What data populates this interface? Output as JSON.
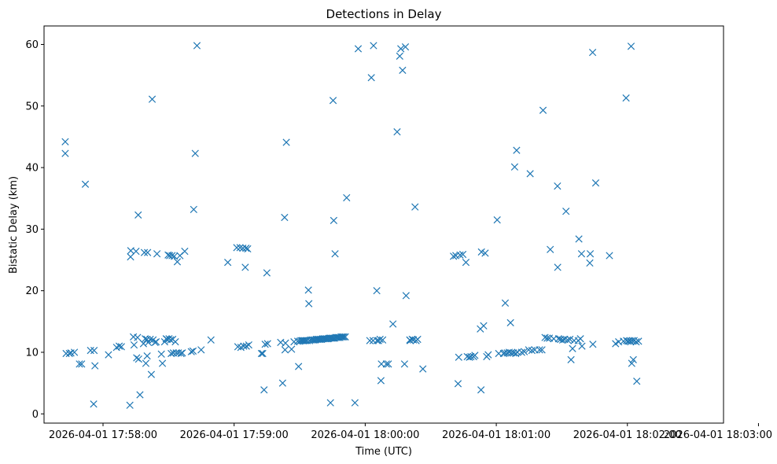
{
  "chart_data": {
    "type": "scatter",
    "title": "Detections in Delay",
    "xlabel": "Time (UTC)",
    "ylabel": "Bistatic Delay (km)",
    "marker": "x",
    "color": "#1f77b4",
    "x_unit": "seconds after 2026-04-01 17:57:00",
    "xlim": [
      33,
      344
    ],
    "ylim": [
      -1.5,
      63
    ],
    "x_ticks": [
      {
        "value": 60,
        "label": "2026-04-01 17:58:00"
      },
      {
        "value": 120,
        "label": "2026-04-01 17:59:00"
      },
      {
        "value": 180,
        "label": "2026-04-01 18:00:00"
      },
      {
        "value": 240,
        "label": "2026-04-01 18:01:00"
      },
      {
        "value": 300,
        "label": "2026-04-01 18:02:00"
      },
      {
        "value": 360,
        "label": "2026-04-01 18:03:00"
      }
    ],
    "y_ticks": [
      {
        "value": 0,
        "label": "0"
      },
      {
        "value": 10,
        "label": "10"
      },
      {
        "value": 20,
        "label": "20"
      },
      {
        "value": 30,
        "label": "30"
      },
      {
        "value": 40,
        "label": "40"
      },
      {
        "value": 50,
        "label": "50"
      },
      {
        "value": 60,
        "label": "60"
      }
    ],
    "points": [
      [
        42.7,
        44.2
      ],
      [
        42.7,
        42.3
      ],
      [
        43.1,
        9.8
      ],
      [
        44.6,
        9.8
      ],
      [
        45.3,
        9.9
      ],
      [
        46.9,
        10.0
      ],
      [
        49.2,
        8.1
      ],
      [
        50.2,
        8.1
      ],
      [
        51.9,
        37.3
      ],
      [
        54.3,
        10.3
      ],
      [
        55.7,
        1.6
      ],
      [
        55.9,
        10.3
      ],
      [
        56.3,
        7.8
      ],
      [
        62.5,
        9.6
      ],
      [
        66.2,
        10.8
      ],
      [
        67.4,
        11.0
      ],
      [
        68.4,
        10.9
      ],
      [
        72.3,
        1.4
      ],
      [
        72.6,
        25.5
      ],
      [
        72.7,
        26.5
      ],
      [
        73.9,
        12.5
      ],
      [
        74.2,
        11.2
      ],
      [
        75.1,
        26.4
      ],
      [
        75.4,
        9.1
      ],
      [
        75.8,
        12.4
      ],
      [
        76.1,
        32.3
      ],
      [
        76.3,
        8.9
      ],
      [
        76.9,
        3.1
      ],
      [
        78.5,
        11.4
      ],
      [
        78.9,
        26.2
      ],
      [
        79.3,
        12.2
      ],
      [
        79.6,
        8.2
      ],
      [
        80.1,
        12.1
      ],
      [
        80.2,
        9.4
      ],
      [
        80.4,
        26.2
      ],
      [
        80.7,
        11.6
      ],
      [
        81.6,
        12.1
      ],
      [
        82.1,
        6.4
      ],
      [
        82.5,
        51.1
      ],
      [
        82.9,
        12.0
      ],
      [
        83.8,
        11.6
      ],
      [
        84.3,
        11.7
      ],
      [
        84.7,
        26.0
      ],
      [
        86.7,
        9.7
      ],
      [
        87.2,
        8.2
      ],
      [
        88.2,
        11.7
      ],
      [
        88.9,
        12.2
      ],
      [
        89.3,
        12.1
      ],
      [
        89.8,
        25.8
      ],
      [
        90.2,
        12.2
      ],
      [
        90.5,
        25.7
      ],
      [
        90.9,
        12.0
      ],
      [
        91.2,
        9.8
      ],
      [
        91.6,
        25.7
      ],
      [
        91.9,
        12.1
      ],
      [
        92.2,
        9.9
      ],
      [
        92.6,
        25.6
      ],
      [
        93.1,
        11.7
      ],
      [
        93.5,
        9.9
      ],
      [
        94.0,
        24.7
      ],
      [
        94.5,
        9.9
      ],
      [
        95.2,
        25.7
      ],
      [
        95.7,
        9.8
      ],
      [
        96.3,
        9.9
      ],
      [
        97.4,
        26.4
      ],
      [
        100.4,
        10.1
      ],
      [
        101.2,
        10.2
      ],
      [
        101.5,
        33.2
      ],
      [
        102.2,
        42.3
      ],
      [
        103.0,
        59.8
      ],
      [
        104.9,
        10.4
      ],
      [
        109.4,
        12.0
      ],
      [
        117.1,
        24.6
      ],
      [
        121.2,
        27.0
      ],
      [
        121.7,
        10.9
      ],
      [
        122.7,
        27.0
      ],
      [
        123.1,
        10.8
      ],
      [
        124.0,
        26.9
      ],
      [
        124.4,
        11.0
      ],
      [
        125.1,
        23.8
      ],
      [
        125.4,
        26.9
      ],
      [
        125.6,
        11.0
      ],
      [
        126.2,
        26.8
      ],
      [
        126.7,
        11.2
      ],
      [
        132.5,
        9.8
      ],
      [
        133.1,
        9.8
      ],
      [
        133.7,
        3.9
      ],
      [
        134.2,
        11.3
      ],
      [
        135.0,
        22.9
      ],
      [
        135.3,
        11.4
      ],
      [
        141.3,
        11.6
      ],
      [
        142.2,
        5.0
      ],
      [
        143.1,
        31.9
      ],
      [
        143.3,
        10.4
      ],
      [
        143.5,
        11.5
      ],
      [
        143.9,
        44.1
      ],
      [
        146.3,
        10.5
      ],
      [
        147.4,
        11.7
      ],
      [
        149.1,
        11.8
      ],
      [
        149.5,
        7.7
      ],
      [
        150.0,
        11.8
      ],
      [
        150.6,
        11.9
      ],
      [
        151.2,
        11.9
      ],
      [
        151.6,
        11.9
      ],
      [
        152.2,
        11.9
      ],
      [
        152.8,
        11.9
      ],
      [
        153.4,
        11.9
      ],
      [
        154.0,
        20.1
      ],
      [
        154.2,
        17.9
      ],
      [
        154.5,
        11.9
      ],
      [
        155.1,
        12.0
      ],
      [
        155.8,
        12.0
      ],
      [
        156.4,
        12.0
      ],
      [
        157.0,
        12.0
      ],
      [
        157.6,
        12.1
      ],
      [
        158.2,
        12.1
      ],
      [
        158.8,
        12.1
      ],
      [
        159.4,
        12.1
      ],
      [
        160.0,
        12.1
      ],
      [
        160.6,
        12.2
      ],
      [
        161.2,
        12.2
      ],
      [
        161.8,
        12.2
      ],
      [
        162.4,
        12.2
      ],
      [
        163.0,
        12.2
      ],
      [
        163.6,
        12.3
      ],
      [
        164.1,
        1.8
      ],
      [
        164.2,
        12.3
      ],
      [
        164.8,
        12.3
      ],
      [
        165.3,
        50.9
      ],
      [
        165.4,
        12.3
      ],
      [
        165.6,
        31.4
      ],
      [
        166.0,
        12.3
      ],
      [
        166.2,
        26.0
      ],
      [
        166.6,
        12.4
      ],
      [
        167.2,
        12.4
      ],
      [
        167.8,
        12.4
      ],
      [
        168.4,
        12.4
      ],
      [
        169.0,
        12.5
      ],
      [
        169.6,
        12.5
      ],
      [
        170.2,
        12.5
      ],
      [
        170.9,
        12.5
      ],
      [
        171.5,
        35.1
      ],
      [
        175.3,
        1.8
      ],
      [
        176.8,
        59.3
      ],
      [
        182.1,
        11.9
      ],
      [
        182.8,
        54.6
      ],
      [
        183.6,
        11.9
      ],
      [
        183.8,
        59.8
      ],
      [
        185.3,
        20.0
      ],
      [
        185.4,
        11.9
      ],
      [
        186.1,
        11.9
      ],
      [
        186.8,
        12.1
      ],
      [
        187.2,
        5.4
      ],
      [
        187.4,
        8.1
      ],
      [
        188.0,
        12.0
      ],
      [
        189.7,
        8.1
      ],
      [
        190.6,
        8.1
      ],
      [
        192.7,
        14.6
      ],
      [
        194.6,
        45.8
      ],
      [
        195.8,
        58.1
      ],
      [
        196.3,
        59.3
      ],
      [
        197.1,
        55.8
      ],
      [
        198.0,
        8.1
      ],
      [
        198.4,
        59.6
      ],
      [
        198.7,
        19.2
      ],
      [
        200.4,
        12.0
      ],
      [
        200.6,
        11.9
      ],
      [
        201.5,
        12.1
      ],
      [
        202.1,
        12.0
      ],
      [
        202.8,
        33.6
      ],
      [
        203.3,
        11.9
      ],
      [
        204.0,
        12.1
      ],
      [
        206.4,
        7.3
      ],
      [
        220.4,
        25.6
      ],
      [
        221.5,
        25.7
      ],
      [
        222.5,
        4.9
      ],
      [
        222.8,
        9.2
      ],
      [
        223.4,
        25.8
      ],
      [
        224.7,
        25.9
      ],
      [
        226.1,
        24.6
      ],
      [
        226.7,
        9.3
      ],
      [
        227.7,
        9.2
      ],
      [
        228.4,
        9.3
      ],
      [
        229.6,
        9.3
      ],
      [
        230.2,
        9.5
      ],
      [
        232.7,
        13.8
      ],
      [
        233.0,
        3.9
      ],
      [
        233.2,
        26.3
      ],
      [
        234.2,
        14.3
      ],
      [
        234.9,
        26.1
      ],
      [
        235.6,
        9.3
      ],
      [
        236.3,
        9.6
      ],
      [
        240.4,
        31.5
      ],
      [
        241.1,
        9.8
      ],
      [
        243.3,
        9.8
      ],
      [
        243.9,
        9.9
      ],
      [
        244.1,
        18.0
      ],
      [
        245.0,
        9.9
      ],
      [
        245.9,
        10.0
      ],
      [
        246.5,
        14.8
      ],
      [
        246.9,
        9.9
      ],
      [
        247.9,
        9.9
      ],
      [
        248.4,
        40.1
      ],
      [
        248.9,
        9.8
      ],
      [
        249.3,
        42.8
      ],
      [
        249.7,
        10.0
      ],
      [
        251.6,
        10.0
      ],
      [
        252.8,
        10.1
      ],
      [
        254.8,
        10.4
      ],
      [
        255.5,
        39.0
      ],
      [
        256.3,
        10.3
      ],
      [
        257.6,
        10.4
      ],
      [
        259.8,
        10.4
      ],
      [
        260.9,
        10.4
      ],
      [
        261.4,
        49.3
      ],
      [
        262.3,
        12.4
      ],
      [
        263.3,
        12.3
      ],
      [
        264.3,
        12.3
      ],
      [
        264.7,
        26.7
      ],
      [
        266.3,
        12.2
      ],
      [
        268.0,
        37.0
      ],
      [
        268.1,
        23.8
      ],
      [
        268.5,
        12.2
      ],
      [
        269.4,
        12.1
      ],
      [
        270.4,
        12.0
      ],
      [
        271.3,
        12.1
      ],
      [
        271.9,
        32.9
      ],
      [
        272.6,
        12.0
      ],
      [
        273.7,
        12.1
      ],
      [
        274.2,
        8.8
      ],
      [
        274.9,
        10.6
      ],
      [
        275.6,
        11.9
      ],
      [
        277.5,
        11.9
      ],
      [
        277.8,
        28.4
      ],
      [
        278.5,
        12.2
      ],
      [
        279.0,
        26.0
      ],
      [
        279.2,
        11.0
      ],
      [
        282.8,
        24.5
      ],
      [
        283.0,
        26.0
      ],
      [
        284.1,
        58.7
      ],
      [
        284.2,
        11.3
      ],
      [
        285.5,
        37.5
      ],
      [
        291.8,
        25.7
      ],
      [
        294.6,
        11.4
      ],
      [
        296.0,
        11.7
      ],
      [
        298.2,
        11.8
      ],
      [
        299.4,
        51.3
      ],
      [
        299.6,
        11.9
      ],
      [
        300.3,
        11.8
      ],
      [
        301.2,
        11.9
      ],
      [
        301.5,
        11.7
      ],
      [
        301.7,
        59.7
      ],
      [
        302.0,
        8.2
      ],
      [
        302.2,
        11.9
      ],
      [
        302.7,
        8.8
      ],
      [
        303.1,
        11.9
      ],
      [
        304.0,
        11.7
      ],
      [
        304.3,
        5.3
      ],
      [
        305.1,
        11.8
      ]
    ]
  }
}
